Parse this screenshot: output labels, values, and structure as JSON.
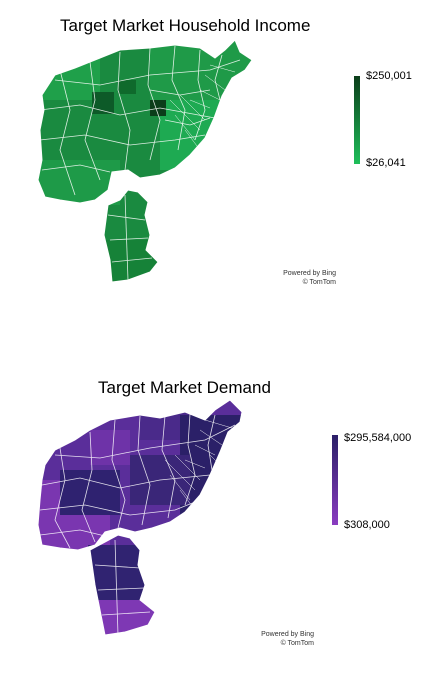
{
  "maps": {
    "income": {
      "title": "Target Market Household Income",
      "legend": {
        "max_label": "$250,001",
        "min_label": "$26,041",
        "max_color": "#0b3d1a",
        "min_color": "#1fbf5a"
      },
      "attribution": {
        "powered": "Powered by Bing",
        "copyright": "© TomTom"
      }
    },
    "demand": {
      "title": "Target Market Demand",
      "legend": {
        "max_label": "$295,584,000",
        "min_label": "$308,000",
        "max_color": "#2b2068",
        "min_color": "#8a3cc0"
      },
      "attribution": {
        "powered": "Powered by Bing",
        "copyright": "© TomTom"
      }
    }
  }
}
